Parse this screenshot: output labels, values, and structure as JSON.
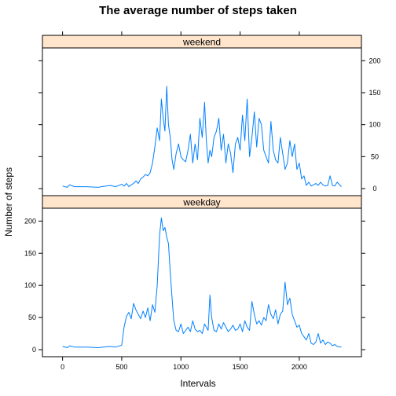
{
  "chart_data": {
    "type": "line",
    "title": "The average number of steps taken",
    "xlabel": "Intervals",
    "ylabel": "Number of steps",
    "xlim": [
      -170,
      2525
    ],
    "ylim": [
      -11,
      220
    ],
    "x_ticks": [
      0,
      500,
      1000,
      1500,
      2000
    ],
    "y_ticks": [
      0,
      50,
      100,
      150,
      200
    ],
    "panels": [
      {
        "name": "weekend",
        "x": [
          0,
          40,
          60,
          100,
          200,
          300,
          400,
          450,
          500,
          520,
          540,
          560,
          580,
          600,
          620,
          640,
          660,
          680,
          700,
          720,
          740,
          760,
          780,
          800,
          820,
          835,
          850,
          865,
          880,
          895,
          910,
          925,
          940,
          960,
          980,
          1000,
          1020,
          1040,
          1060,
          1080,
          1100,
          1120,
          1140,
          1160,
          1180,
          1200,
          1215,
          1230,
          1245,
          1260,
          1280,
          1300,
          1320,
          1340,
          1360,
          1380,
          1400,
          1420,
          1440,
          1460,
          1480,
          1500,
          1520,
          1540,
          1560,
          1580,
          1600,
          1620,
          1640,
          1660,
          1680,
          1700,
          1720,
          1740,
          1760,
          1780,
          1800,
          1820,
          1840,
          1860,
          1880,
          1900,
          1920,
          1940,
          1960,
          1980,
          2000,
          2020,
          2040,
          2060,
          2080,
          2100,
          2120,
          2140,
          2160,
          2180,
          2200,
          2220,
          2240,
          2260,
          2280,
          2300,
          2320,
          2355
        ],
        "y": [
          4,
          2,
          6,
          3,
          3,
          2,
          5,
          3,
          7,
          4,
          8,
          3,
          6,
          8,
          12,
          8,
          15,
          18,
          22,
          20,
          25,
          40,
          65,
          95,
          75,
          140,
          110,
          90,
          160,
          100,
          80,
          45,
          30,
          55,
          70,
          50,
          45,
          42,
          60,
          85,
          40,
          70,
          45,
          110,
          80,
          135,
          75,
          40,
          60,
          50,
          80,
          90,
          110,
          60,
          85,
          40,
          70,
          55,
          25,
          70,
          80,
          60,
          115,
          75,
          140,
          50,
          80,
          120,
          65,
          110,
          100,
          60,
          50,
          40,
          105,
          60,
          45,
          40,
          80,
          55,
          30,
          40,
          75,
          50,
          70,
          30,
          40,
          15,
          20,
          5,
          10,
          4,
          6,
          8,
          5,
          10,
          6,
          4,
          5,
          20,
          5,
          4,
          10,
          3
        ],
        "ylim": [
          -11,
          220
        ],
        "ytick_side": "right"
      },
      {
        "name": "weekday",
        "x": [
          0,
          40,
          60,
          100,
          200,
          300,
          400,
          450,
          500,
          520,
          540,
          560,
          580,
          600,
          620,
          640,
          660,
          680,
          700,
          720,
          740,
          760,
          780,
          800,
          820,
          835,
          850,
          865,
          880,
          895,
          910,
          925,
          940,
          960,
          980,
          1000,
          1020,
          1040,
          1060,
          1080,
          1100,
          1120,
          1140,
          1160,
          1180,
          1200,
          1215,
          1230,
          1245,
          1260,
          1280,
          1300,
          1320,
          1340,
          1360,
          1380,
          1400,
          1420,
          1440,
          1460,
          1480,
          1500,
          1520,
          1540,
          1560,
          1580,
          1600,
          1620,
          1640,
          1660,
          1680,
          1700,
          1720,
          1740,
          1760,
          1780,
          1800,
          1820,
          1840,
          1860,
          1880,
          1900,
          1920,
          1940,
          1960,
          1980,
          2000,
          2020,
          2040,
          2060,
          2080,
          2100,
          2120,
          2140,
          2160,
          2180,
          2200,
          2220,
          2240,
          2260,
          2280,
          2300,
          2320,
          2355
        ],
        "y": [
          5,
          3,
          6,
          4,
          4,
          3,
          5,
          4,
          7,
          35,
          52,
          58,
          48,
          72,
          62,
          55,
          48,
          60,
          50,
          65,
          45,
          70,
          58,
          100,
          178,
          205,
          185,
          190,
          175,
          165,
          120,
          80,
          45,
          30,
          28,
          40,
          25,
          30,
          35,
          28,
          45,
          32,
          28,
          30,
          25,
          40,
          35,
          30,
          85,
          50,
          30,
          28,
          40,
          32,
          42,
          35,
          28,
          32,
          38,
          30,
          32,
          40,
          28,
          45,
          35,
          30,
          75,
          55,
          40,
          45,
          38,
          50,
          45,
          70,
          55,
          48,
          62,
          40,
          55,
          60,
          105,
          70,
          80,
          55,
          45,
          35,
          38,
          25,
          20,
          15,
          25,
          10,
          8,
          12,
          25,
          10,
          15,
          8,
          12,
          10,
          6,
          8,
          5,
          4
        ],
        "ylim": [
          -11,
          220
        ],
        "ytick_side": "left"
      }
    ],
    "colors": {
      "line": "#0080ff",
      "strip": "#ffe5cc"
    }
  }
}
